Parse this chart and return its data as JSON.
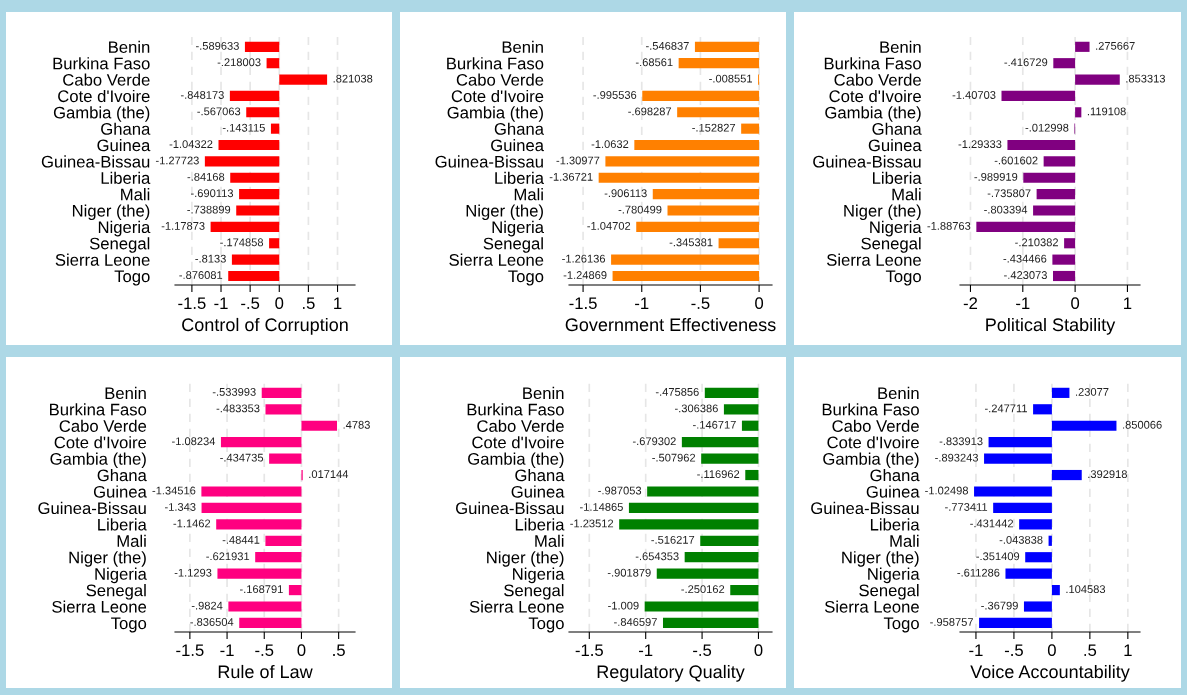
{
  "chart_data": [
    {
      "type": "bar",
      "orientation": "horizontal",
      "xlabel": "Control of Corruption",
      "categories": [
        "Benin",
        "Burkina Faso",
        "Cabo Verde",
        "Cote d'Ivoire",
        "Gambia (the)",
        "Ghana",
        "Guinea",
        "Guinea-Bissau",
        "Liberia",
        "Mali",
        "Niger (the)",
        "Nigeria",
        "Senegal",
        "Sierra Leone",
        "Togo"
      ],
      "values": [
        -0.589633,
        -0.218003,
        0.821038,
        -0.848173,
        -0.567063,
        -0.143115,
        -1.04322,
        -1.27723,
        -0.84168,
        -0.690113,
        -0.738899,
        -1.17873,
        -0.174858,
        -0.8133,
        -0.876081
      ],
      "value_labels": [
        "-.589633",
        "-.218003",
        ".821038",
        "-.848173",
        "-.567063",
        "-.143115",
        "-1.04322",
        "-1.27723",
        "-.84168",
        "-.690113",
        "-.738899",
        "-1.17873",
        "-.174858",
        "-.8133",
        "-.876081"
      ],
      "color": "#ff0000",
      "xlim": [
        -1.79,
        1.3
      ],
      "xticks": [
        {
          "value": -1.5,
          "label": "-1.5"
        },
        {
          "value": -1,
          "label": "-1"
        },
        {
          "value": -0.5,
          "label": "-.5"
        },
        {
          "value": 0,
          "label": "0"
        },
        {
          "value": 0.5,
          "label": ".5"
        },
        {
          "value": 1,
          "label": "1"
        }
      ],
      "grid": "x"
    },
    {
      "type": "bar",
      "orientation": "horizontal",
      "xlabel": "Government Effectiveness",
      "categories": [
        "Benin",
        "Burkina Faso",
        "Cabo Verde",
        "Cote d'Ivoire",
        "Gambia (the)",
        "Ghana",
        "Guinea",
        "Guinea-Bissau",
        "Liberia",
        "Mali",
        "Niger (the)",
        "Nigeria",
        "Senegal",
        "Sierra Leone",
        "Togo"
      ],
      "values": [
        -0.546837,
        -0.68561,
        -0.008551,
        -0.995536,
        -0.698287,
        -0.152827,
        -1.0632,
        -1.30977,
        -1.36721,
        -0.906113,
        -0.780499,
        -1.04702,
        -0.345381,
        -1.26136,
        -1.24869
      ],
      "value_labels": [
        "-.546837",
        "-.68561",
        "-.008551",
        "-.995536",
        "-.698287",
        "-.152827",
        "-1.0632",
        "-1.30977",
        "-1.36721",
        "-.906113",
        "-.780499",
        "-1.04702",
        "-.345381",
        "-1.26136",
        "-1.24869"
      ],
      "color": "#ff8000",
      "xlim": [
        -1.62,
        0.11
      ],
      "xticks": [
        {
          "value": -1.5,
          "label": "-1.5"
        },
        {
          "value": -1,
          "label": "-1"
        },
        {
          "value": -0.5,
          "label": "-.5"
        },
        {
          "value": 0,
          "label": "0"
        }
      ],
      "grid": "x"
    },
    {
      "type": "bar",
      "orientation": "horizontal",
      "xlabel": "Political Stability",
      "categories": [
        "Benin",
        "Burkina Faso",
        "Cabo Verde",
        "Cote d'Ivoire",
        "Gambia (the)",
        "Ghana",
        "Guinea",
        "Guinea-Bissau",
        "Liberia",
        "Mali",
        "Niger (the)",
        "Nigeria",
        "Senegal",
        "Sierra Leone",
        "Togo"
      ],
      "values": [
        0.275667,
        -0.416729,
        0.853313,
        -1.40703,
        0.119108,
        -0.012998,
        -1.29333,
        -0.601602,
        -0.989919,
        -0.735807,
        -0.803394,
        -1.88763,
        -0.210382,
        -0.434466,
        -0.423073
      ],
      "value_labels": [
        ".275667",
        "-.416729",
        ".853313",
        "-1.40703",
        ".119108",
        "-.012998",
        "-1.29333",
        "-.601602",
        "-.989919",
        "-.735807",
        "-.803394",
        "-1.88763",
        "-.210382",
        "-.434466",
        "-.423073"
      ],
      "color": "#800080",
      "xlim": [
        -2.2,
        1.24
      ],
      "xticks": [
        -2,
        -1,
        0,
        1
      ],
      "grid": "x"
    },
    {
      "type": "bar",
      "orientation": "horizontal",
      "xlabel": "Rule of Law",
      "categories": [
        "Benin",
        "Burkina Faso",
        "Cabo Verde",
        "Cote d'Ivoire",
        "Gambia (the)",
        "Ghana",
        "Guinea",
        "Guinea-Bissau",
        "Liberia",
        "Mali",
        "Niger (the)",
        "Nigeria",
        "Senegal",
        "Sierra Leone",
        "Togo"
      ],
      "values": [
        -0.533993,
        -0.483353,
        0.4783,
        -1.08234,
        -0.434735,
        0.017144,
        -1.34516,
        -1.343,
        -1.1462,
        -0.48441,
        -0.621931,
        -1.1293,
        -0.168791,
        -0.9824,
        -0.836504
      ],
      "value_labels": [
        "-.533993",
        "-.483353",
        ".4783",
        "-1.08234",
        "-.434735",
        ".017144",
        "-1.34516",
        "-1.343",
        "-1.1462",
        "-.48441",
        "-.621931",
        "-1.1293",
        "-.168791",
        "-.9824",
        "-.836504"
      ],
      "color": "#ff0080",
      "xlim": [
        -1.7,
        0.72
      ],
      "xticks": [
        {
          "value": -1.5,
          "label": "-1.5"
        },
        {
          "value": -1,
          "label": "-1"
        },
        {
          "value": -0.5,
          "label": "-.5"
        },
        {
          "value": 0,
          "label": "0"
        },
        {
          "value": 0.5,
          "label": ".5"
        }
      ],
      "grid": "x"
    },
    {
      "type": "bar",
      "orientation": "horizontal",
      "xlabel": "Regulatory Quality",
      "categories": [
        "Benin",
        "Burkina Faso",
        "Cabo Verde",
        "Cote d'Ivoire",
        "Gambia (the)",
        "Ghana",
        "Guinea",
        "Guinea-Bissau",
        "Liberia",
        "Mali",
        "Niger (the)",
        "Nigeria",
        "Senegal",
        "Sierra Leone",
        "Togo"
      ],
      "values": [
        -0.475856,
        -0.306386,
        -0.146717,
        -0.679302,
        -0.507962,
        -0.116962,
        -0.987053,
        -1.14865,
        -1.23512,
        -0.516217,
        -0.654353,
        -0.901879,
        -0.250162,
        -1.009,
        -0.846597
      ],
      "value_labels": [
        "-.475856",
        "-.306386",
        "-.146717",
        "-.679302",
        "-.507962",
        "-.116962",
        "-.987053",
        "-1.14865",
        "-1.23512",
        "-.516217",
        "-.654353",
        "-.901879",
        "-.250162",
        "-1.009",
        "-.846597"
      ],
      "color": "#008000",
      "xlim": [
        -1.68,
        0.12
      ],
      "xticks": [
        {
          "value": -1.5,
          "label": "-1.5"
        },
        {
          "value": -1,
          "label": "-1"
        },
        {
          "value": -0.5,
          "label": "-.5"
        },
        {
          "value": 0,
          "label": "0"
        }
      ],
      "grid": "x"
    },
    {
      "type": "bar",
      "orientation": "horizontal",
      "xlabel": "Voice Accountability",
      "categories": [
        "Benin",
        "Burkina Faso",
        "Cabo Verde",
        "Cote d'Ivoire",
        "Gambia (the)",
        "Ghana",
        "Guinea",
        "Guinea-Bissau",
        "Liberia",
        "Mali",
        "Niger (the)",
        "Nigeria",
        "Senegal",
        "Sierra Leone",
        "Togo"
      ],
      "values": [
        0.23077,
        -0.247711,
        0.850066,
        -0.833913,
        -0.893243,
        0.392918,
        -1.02498,
        -0.773411,
        -0.431442,
        -0.043838,
        -0.351409,
        -0.611286,
        0.104583,
        -0.36799,
        -0.958757
      ],
      "value_labels": [
        ".23077",
        "-.247711",
        ".850066",
        "-.833913",
        "-.893243",
        ".392918",
        "-1.02498",
        "-.773411",
        "-.431442",
        "-.043838",
        "-.351409",
        "-.611286",
        ".104583",
        "-.36799",
        "-.958757"
      ],
      "color": "#0000ff",
      "xlim": [
        -1.21,
        1.16
      ],
      "xticks": [
        {
          "value": -1,
          "label": "-1"
        },
        {
          "value": -0.5,
          "label": "-.5"
        },
        {
          "value": 0,
          "label": "0"
        },
        {
          "value": 0.5,
          "label": ".5"
        },
        {
          "value": 1,
          "label": "1"
        }
      ],
      "grid": "x"
    }
  ]
}
